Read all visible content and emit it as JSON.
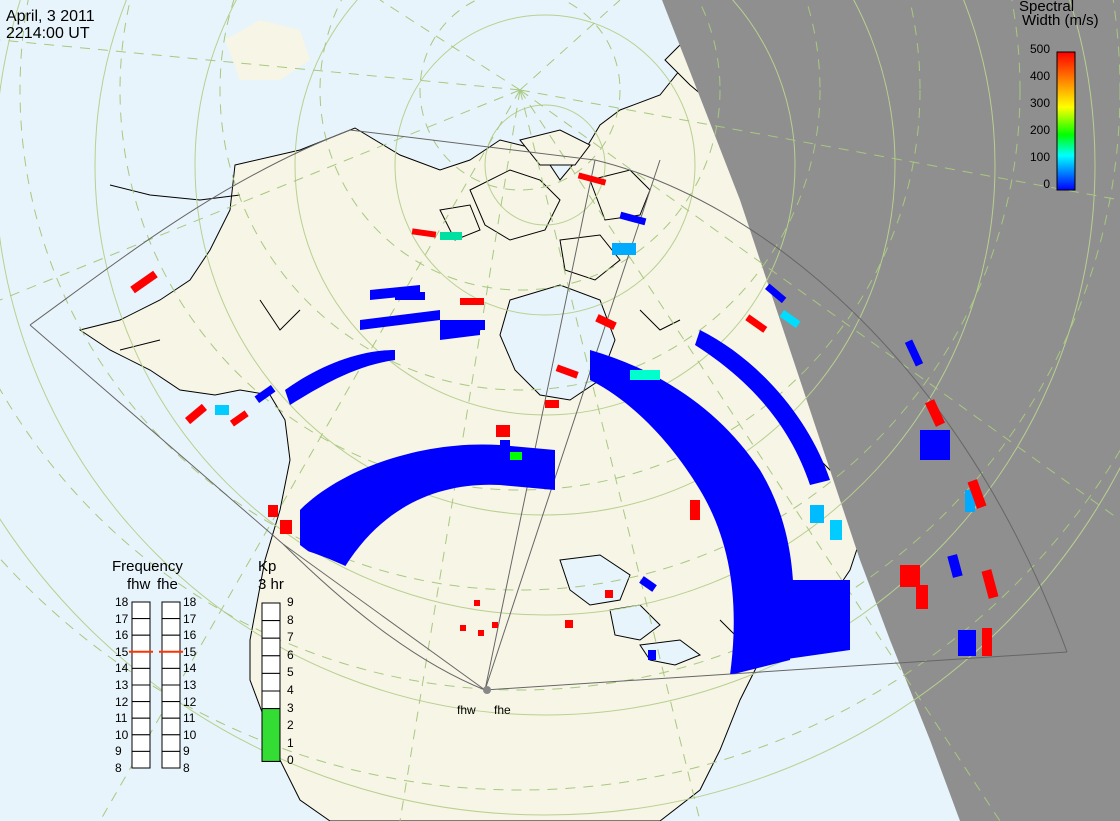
{
  "header": {
    "date": "April, 3 2011",
    "time": "2214:00 UT"
  },
  "colorbar": {
    "title_line1": "Spectral",
    "title_line2": "Width (m/s)",
    "ticks": [
      "500",
      "400",
      "300",
      "200",
      "100",
      "0"
    ],
    "gradient": [
      "#ff0000",
      "#ff8000",
      "#ffff00",
      "#00ff00",
      "#00ffff",
      "#0000ff"
    ]
  },
  "frequency_panel": {
    "title": "Frequency",
    "radar_a": "fhw",
    "radar_b": "fhe",
    "ticks": [
      "18",
      "17",
      "16",
      "15",
      "14",
      "13",
      "12",
      "11",
      "10",
      "9",
      "8"
    ],
    "fhw_value": 15,
    "fhe_value": 15,
    "marker_color": "#ff3300"
  },
  "kp_panel": {
    "title_line1": "Kp",
    "title_line2": "3 hr",
    "ticks": [
      "9",
      "8",
      "7",
      "6",
      "5",
      "4",
      "3",
      "2",
      "1",
      "0"
    ],
    "kp_value": 3,
    "fill_color": "#33dd33"
  },
  "radars": {
    "west_label": "fhw",
    "east_label": "fhe"
  },
  "colors": {
    "ocean": "#e8f4fb",
    "land": "#f7f5e6",
    "night": "#8f8f8f",
    "grid_solid": "#b8d090",
    "grid_dashed": "#a8c880",
    "fov": "#666666",
    "coast": "#000000"
  }
}
